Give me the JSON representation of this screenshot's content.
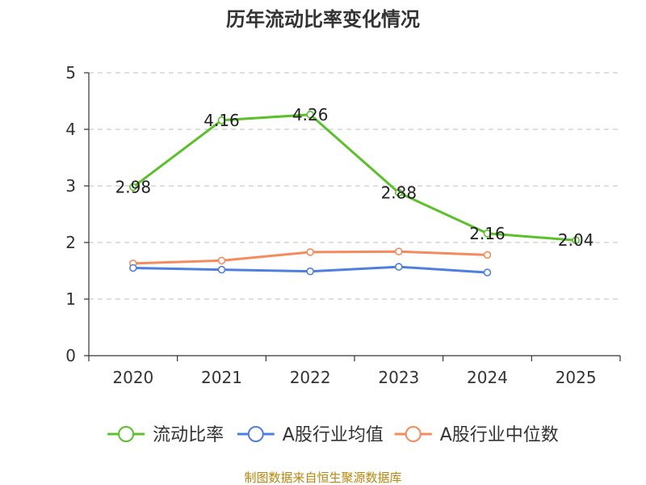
{
  "chart_data": {
    "type": "line",
    "title": "历年流动比率变化情况",
    "categories": [
      "2020",
      "2021",
      "2022",
      "2023",
      "2024",
      "2025"
    ],
    "ylim": [
      0,
      5
    ],
    "yticks": [
      "0",
      "1",
      "2",
      "3",
      "4",
      "5"
    ],
    "grid": true,
    "legend_position": "bottom",
    "series": [
      {
        "name": "流动比率",
        "color": "#5bc12a",
        "values": [
          2.98,
          4.16,
          4.26,
          2.88,
          2.16,
          2.04
        ],
        "labels": [
          "2.98",
          "4.16",
          "4.26",
          "2.88",
          "2.16",
          "2.04"
        ]
      },
      {
        "name": "A股行业均值",
        "color": "#4f7fde",
        "values": [
          1.55,
          1.52,
          1.49,
          1.57,
          1.47,
          null
        ]
      },
      {
        "name": "A股行业中位数",
        "color": "#f58a5c",
        "values": [
          1.63,
          1.68,
          1.83,
          1.84,
          1.78,
          null
        ]
      }
    ]
  },
  "source": "制图数据来自恒生聚源数据库"
}
